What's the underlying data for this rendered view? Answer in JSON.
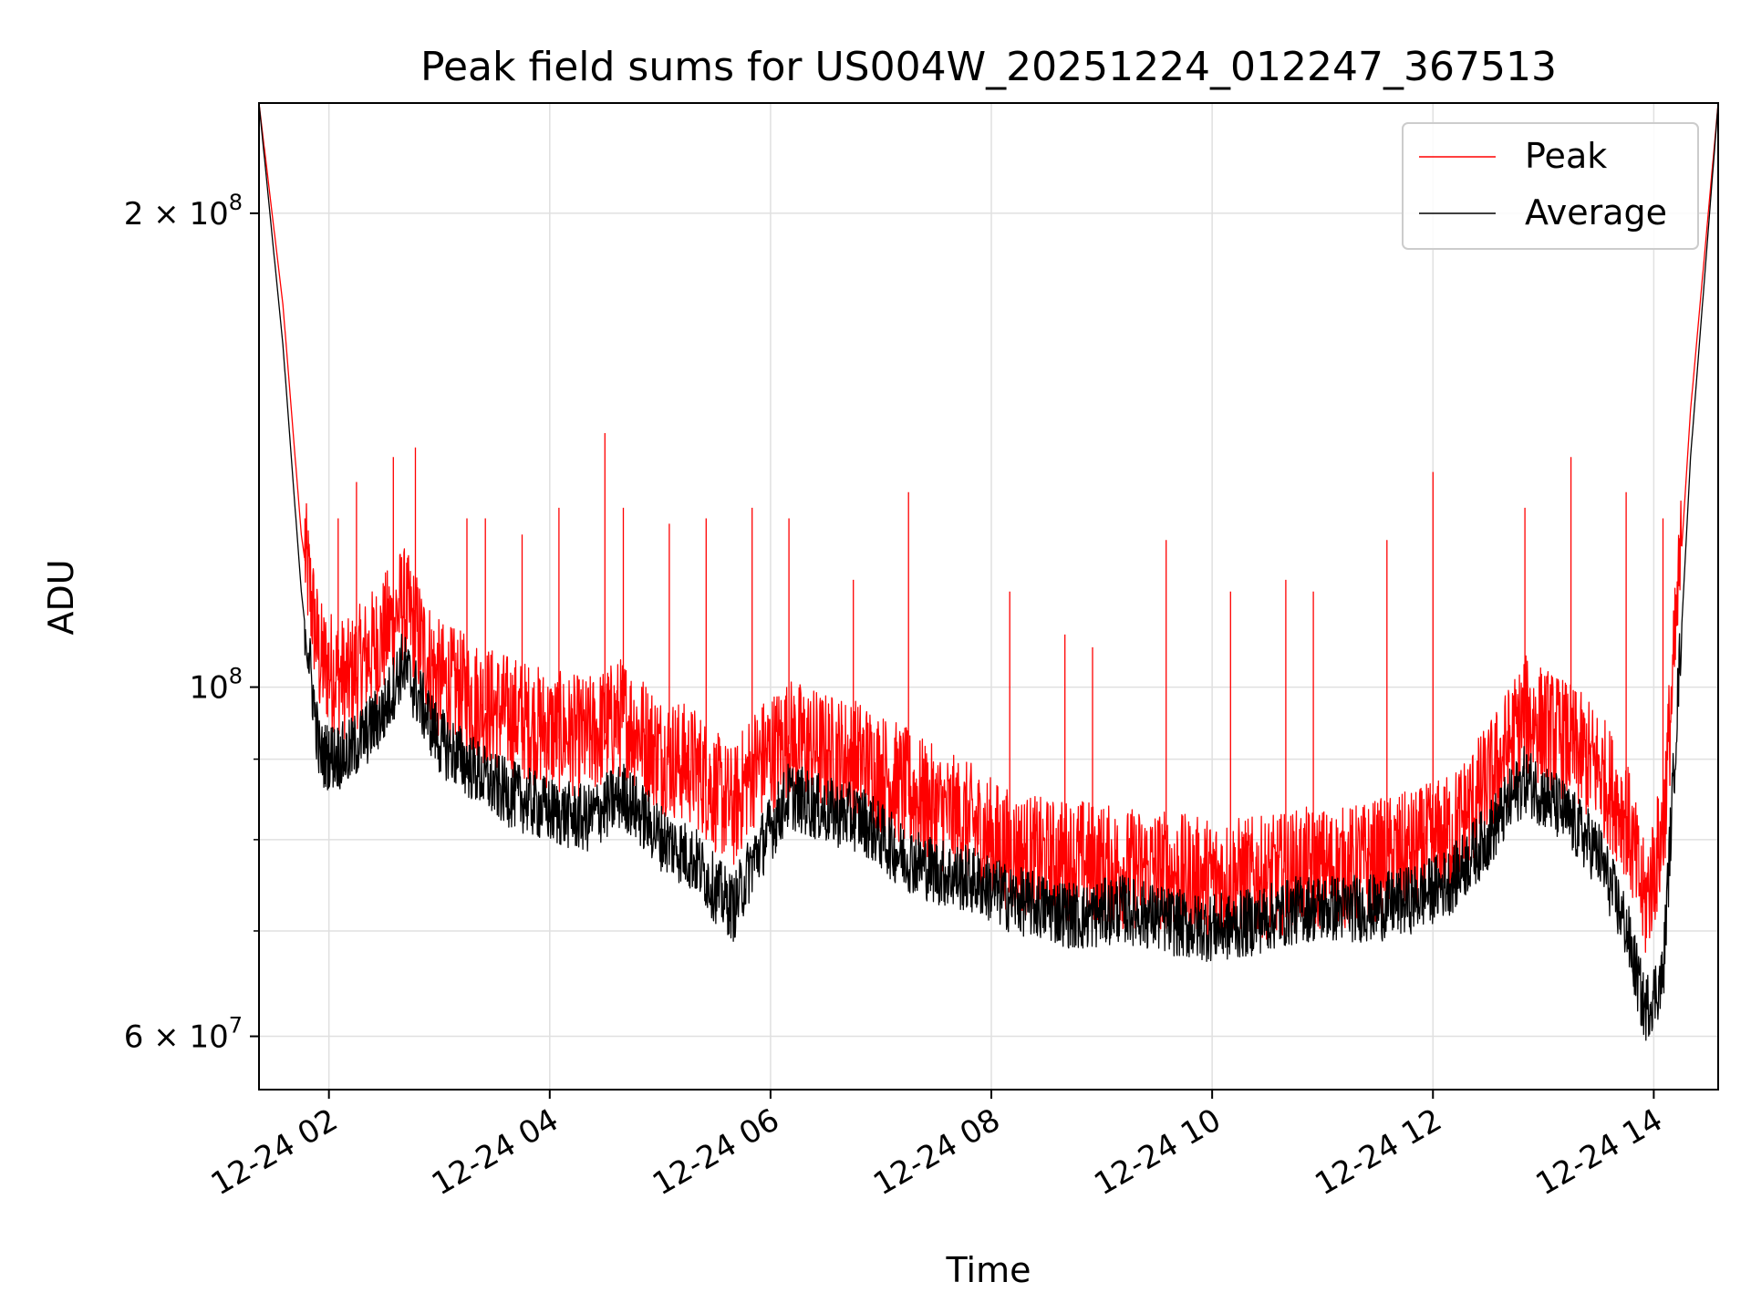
{
  "chart_data": {
    "type": "line",
    "title": "Peak field sums for US004W_20251224_012247_367513",
    "xlabel": "Time",
    "ylabel": "ADU",
    "y_scale": "log",
    "ylim": [
      55500000,
      235000000
    ],
    "xlim": [
      "12-24 01:22",
      "12-24 14:35"
    ],
    "x_ticks": [
      {
        "value": "12-24 02:00",
        "label": "12-24 02"
      },
      {
        "value": "12-24 04:00",
        "label": "12-24 04"
      },
      {
        "value": "12-24 06:00",
        "label": "12-24 06"
      },
      {
        "value": "12-24 08:00",
        "label": "12-24 08"
      },
      {
        "value": "12-24 10:00",
        "label": "12-24 10"
      },
      {
        "value": "12-24 12:00",
        "label": "12-24 12"
      },
      {
        "value": "12-24 14:00",
        "label": "12-24 14"
      }
    ],
    "y_ticks_major": [
      {
        "value": 60000000,
        "label_mantissa": "6",
        "label_times": "×",
        "label_base": "10",
        "label_exp": "7"
      },
      {
        "value": 100000000,
        "label_mantissa": "",
        "label_times": "",
        "label_base": "10",
        "label_exp": "8"
      },
      {
        "value": 200000000,
        "label_mantissa": "2",
        "label_times": "×",
        "label_base": "10",
        "label_exp": "8"
      }
    ],
    "y_ticks_minor": [
      70000000,
      80000000,
      90000000
    ],
    "grid": true,
    "legend": {
      "position": "top-right"
    },
    "series": [
      {
        "name": "Peak",
        "color": "#ff0000",
        "x": [
          "01:22",
          "01:35",
          "01:45",
          "01:55",
          "02:10",
          "02:30",
          "02:40",
          "03:00",
          "03:30",
          "04:00",
          "04:20",
          "04:40",
          "05:00",
          "05:20",
          "05:30",
          "05:40",
          "05:50",
          "06:10",
          "06:30",
          "06:50",
          "07:10",
          "07:30",
          "07:50",
          "08:10",
          "08:30",
          "08:50",
          "09:10",
          "09:30",
          "09:50",
          "10:10",
          "10:30",
          "10:50",
          "11:10",
          "11:30",
          "11:50",
          "12:10",
          "12:30",
          "12:50",
          "13:10",
          "13:30",
          "13:45",
          "13:55",
          "14:05",
          "14:20",
          "14:35"
        ],
        "y": [
          235000000,
          175000000,
          125000000,
          103000000,
          100000000,
          107000000,
          112000000,
          100000000,
          96000000,
          93000000,
          92000000,
          95000000,
          90000000,
          88000000,
          85000000,
          83000000,
          88000000,
          92000000,
          90000000,
          89000000,
          86000000,
          83000000,
          81000000,
          78000000,
          77000000,
          77000000,
          76000000,
          76000000,
          75000000,
          75000000,
          75000000,
          76000000,
          76000000,
          77000000,
          78000000,
          80000000,
          86000000,
          95000000,
          92000000,
          88000000,
          82000000,
          72000000,
          80000000,
          150000000,
          235000000
        ],
        "spikes": [
          {
            "x": "01:47",
            "y": 128000000
          },
          {
            "x": "02:05",
            "y": 128000000
          },
          {
            "x": "02:15",
            "y": 135000000
          },
          {
            "x": "02:35",
            "y": 140000000
          },
          {
            "x": "02:47",
            "y": 142000000
          },
          {
            "x": "03:15",
            "y": 128000000
          },
          {
            "x": "03:25",
            "y": 128000000
          },
          {
            "x": "03:45",
            "y": 125000000
          },
          {
            "x": "04:05",
            "y": 130000000
          },
          {
            "x": "04:30",
            "y": 145000000
          },
          {
            "x": "04:40",
            "y": 130000000
          },
          {
            "x": "05:05",
            "y": 127000000
          },
          {
            "x": "05:25",
            "y": 128000000
          },
          {
            "x": "05:50",
            "y": 130000000
          },
          {
            "x": "06:10",
            "y": 128000000
          },
          {
            "x": "06:45",
            "y": 117000000
          },
          {
            "x": "07:15",
            "y": 133000000
          },
          {
            "x": "08:10",
            "y": 115000000
          },
          {
            "x": "08:40",
            "y": 108000000
          },
          {
            "x": "08:55",
            "y": 106000000
          },
          {
            "x": "09:35",
            "y": 124000000
          },
          {
            "x": "10:10",
            "y": 115000000
          },
          {
            "x": "10:40",
            "y": 117000000
          },
          {
            "x": "10:55",
            "y": 115000000
          },
          {
            "x": "11:35",
            "y": 124000000
          },
          {
            "x": "12:00",
            "y": 137000000
          },
          {
            "x": "12:50",
            "y": 130000000
          },
          {
            "x": "13:15",
            "y": 140000000
          },
          {
            "x": "13:45",
            "y": 133000000
          },
          {
            "x": "14:05",
            "y": 128000000
          }
        ]
      },
      {
        "name": "Average",
        "color": "#000000",
        "x": [
          "01:22",
          "01:35",
          "01:45",
          "01:55",
          "02:10",
          "02:30",
          "02:40",
          "03:00",
          "03:30",
          "04:00",
          "04:20",
          "04:40",
          "05:00",
          "05:20",
          "05:30",
          "05:40",
          "05:50",
          "06:10",
          "06:30",
          "06:50",
          "07:10",
          "07:30",
          "07:50",
          "08:10",
          "08:30",
          "08:50",
          "09:10",
          "09:30",
          "09:50",
          "10:10",
          "10:30",
          "10:50",
          "11:10",
          "11:30",
          "11:50",
          "12:10",
          "12:30",
          "12:50",
          "13:10",
          "13:30",
          "13:45",
          "13:55",
          "14:05",
          "14:20",
          "14:35"
        ],
        "y": [
          235000000,
          165000000,
          115000000,
          90000000,
          90000000,
          96000000,
          103000000,
          92000000,
          86000000,
          83000000,
          82000000,
          85000000,
          80000000,
          77000000,
          74000000,
          72000000,
          77000000,
          85000000,
          83000000,
          82000000,
          78000000,
          76000000,
          75000000,
          73000000,
          72000000,
          71000000,
          72000000,
          71000000,
          70000000,
          70000000,
          71000000,
          72000000,
          72000000,
          72000000,
          73000000,
          75000000,
          80000000,
          87000000,
          83000000,
          78000000,
          70000000,
          62000000,
          65000000,
          140000000,
          235000000
        ]
      }
    ]
  }
}
